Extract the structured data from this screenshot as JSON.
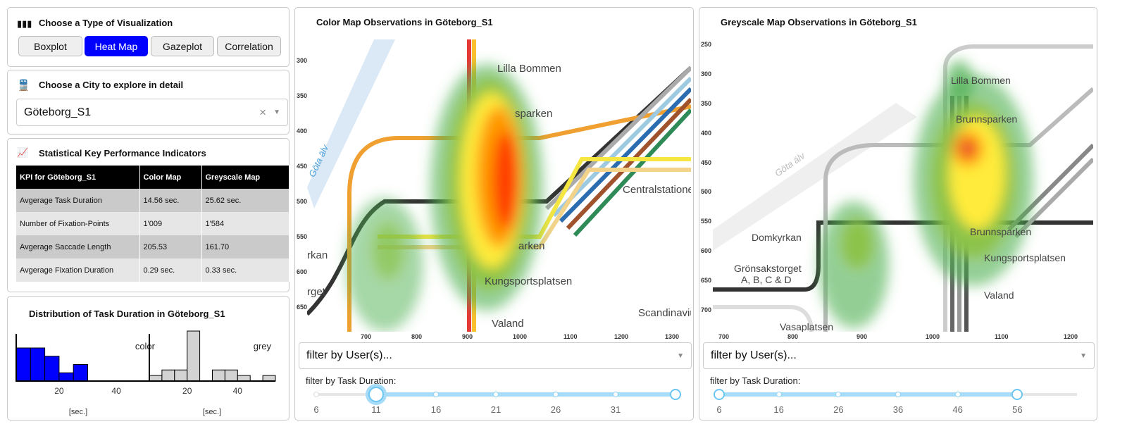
{
  "viz": {
    "title": "Choose a Type of Visualization",
    "buttons": [
      "Boxplot",
      "Heat Map",
      "Gazeplot",
      "Correlation"
    ],
    "active": "Heat Map"
  },
  "city": {
    "title": "Choose a City to explore in detail",
    "selected": "Göteborg_S1",
    "clear": "×"
  },
  "kpi": {
    "title": "Statistical Key Performance Indicators",
    "headers": [
      "KPI for Göteborg_S1",
      "Color Map",
      "Greyscale Map"
    ],
    "rows": [
      [
        "Avgerage Task Duration",
        "14.56 sec.",
        "25.62 sec."
      ],
      [
        "Number of Fixation-Points",
        "1'009",
        "1'584"
      ],
      [
        "Avgerage Saccade Length",
        "205.53",
        "161.70"
      ],
      [
        "Avgerage Fixation Duration",
        "0.29 sec.",
        "0.33 sec."
      ]
    ]
  },
  "dist": {
    "title": "Distribution of Task Duration in Göteborg_S1",
    "xlabel": "[sec.]",
    "chart_data": [
      {
        "type": "bar",
        "name": "color",
        "color": "#0000ff",
        "bins": [
          [
            5,
            10
          ],
          [
            10,
            15
          ],
          [
            15,
            20
          ],
          [
            20,
            25
          ],
          [
            25,
            30
          ]
        ],
        "values": [
          4,
          4,
          3,
          1,
          2
        ],
        "xticks": [
          20,
          40
        ],
        "xlim": [
          5,
          55
        ]
      },
      {
        "type": "bar",
        "name": "grey",
        "color": "#d3d3d3",
        "bins": [
          [
            5,
            10
          ],
          [
            10,
            15
          ],
          [
            15,
            20
          ],
          [
            20,
            25
          ],
          [
            30,
            35
          ],
          [
            35,
            40
          ],
          [
            40,
            45
          ],
          [
            50,
            55
          ]
        ],
        "values": [
          1,
          2,
          2,
          9,
          2,
          2,
          1,
          1
        ],
        "xticks": [
          20,
          40
        ],
        "xlim": [
          5,
          55
        ]
      }
    ]
  },
  "colorMap": {
    "title": "Color Map Observations in Göteborg_S1",
    "yticks": [
      "300",
      "350",
      "400",
      "450",
      "500",
      "550",
      "600",
      "650"
    ],
    "xticks": [
      "700",
      "800",
      "900",
      "1000",
      "1100",
      "1200",
      "1300"
    ],
    "labels": [
      "Lilla Bommen",
      "sparken",
      "Centralstationen",
      "arken",
      "Kungsportsplatsen",
      "Valand",
      "Scandinaviu",
      "rkan",
      "rget",
      "Göta älv"
    ],
    "filter_placeholder": "filter by User(s)...",
    "slider_label": "filter by Task Duration:",
    "slider_ticks": [
      "6",
      "11",
      "16",
      "21",
      "26",
      "31"
    ],
    "slider_range": [
      11,
      36
    ]
  },
  "greyMap": {
    "title": "Greyscale Map Observations in Göteborg_S1",
    "yticks": [
      "250",
      "300",
      "350",
      "400",
      "450",
      "500",
      "550",
      "600",
      "650",
      "700"
    ],
    "xticks": [
      "700",
      "800",
      "900",
      "1000",
      "1100",
      "1200"
    ],
    "labels": [
      "Lilla Bommen",
      "Brunnsparken",
      "Brunnsparken",
      "Domkyrkan",
      "Kungsportsplatsen",
      "Grönsakstorget",
      "A, B, C & D",
      "Valand",
      "Vasaplatsen",
      "Göta älv"
    ],
    "filter_placeholder": "filter by User(s)...",
    "slider_label": "filter by Task Duration:",
    "slider_ticks": [
      "6",
      "16",
      "26",
      "36",
      "46",
      "56"
    ],
    "slider_range": [
      6,
      56
    ]
  }
}
